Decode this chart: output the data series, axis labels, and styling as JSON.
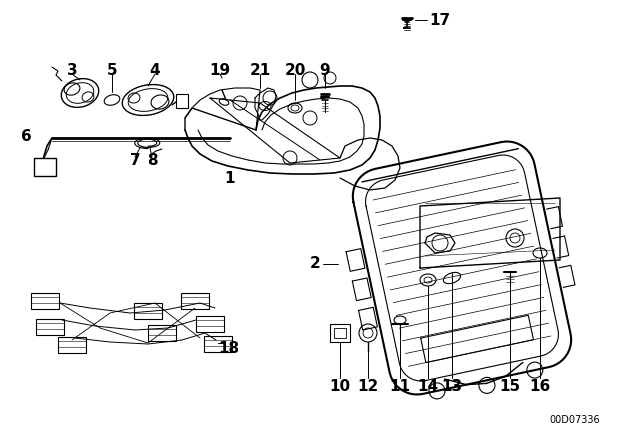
{
  "background_color": "#ffffff",
  "diagram_id": "00D07336",
  "line_color": "#000000",
  "text_color": "#000000",
  "font_size": 9,
  "label_font_size": 11,
  "fig_width": 6.4,
  "fig_height": 4.48,
  "dpi": 100
}
